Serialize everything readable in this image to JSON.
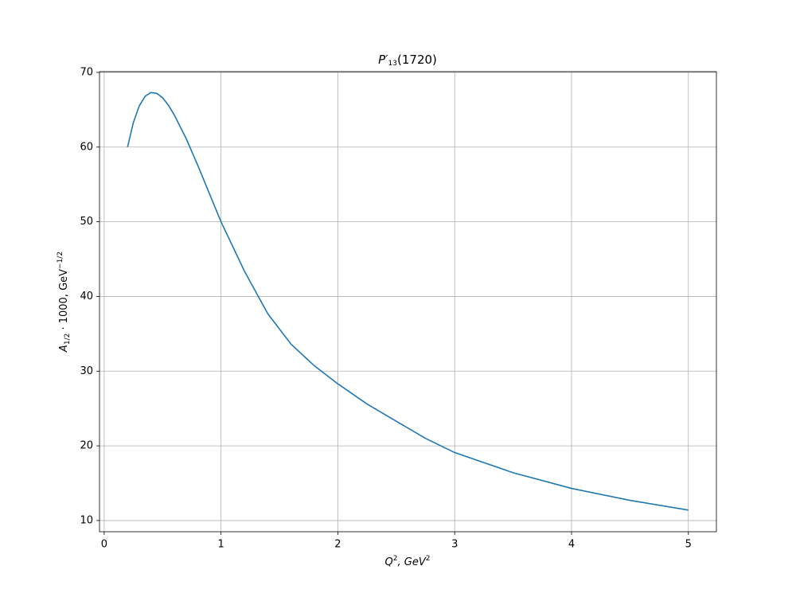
{
  "chart_data": {
    "type": "line",
    "title": [
      "P′",
      "13",
      "(1720)"
    ],
    "xlabel": [
      "Q",
      "2",
      ", GeV",
      "2"
    ],
    "ylabel": [
      "A",
      "1/2",
      " · 1000, GeV",
      "−1/2"
    ],
    "x": [
      0.2,
      0.25,
      0.3,
      0.35,
      0.4,
      0.45,
      0.5,
      0.55,
      0.6,
      0.7,
      0.8,
      0.9,
      1.0,
      1.2,
      1.4,
      1.6,
      1.8,
      2.0,
      2.25,
      2.5,
      2.75,
      3.0,
      3.5,
      4.0,
      4.5,
      5.0
    ],
    "series": [
      {
        "color": "#1f77b4",
        "values": [
          60.0,
          63.3,
          65.5,
          66.8,
          67.3,
          67.2,
          66.6,
          65.6,
          64.3,
          61.2,
          57.6,
          53.8,
          50.0,
          43.4,
          37.7,
          33.6,
          30.7,
          28.3,
          25.6,
          23.3,
          21.0,
          19.1,
          16.4,
          14.3,
          12.7,
          11.4
        ]
      }
    ],
    "xlim": [
      -0.04,
      5.24
    ],
    "ylim": [
      8.5,
      70.1
    ],
    "xticks": [
      0,
      1,
      2,
      3,
      4,
      5
    ],
    "yticks": [
      10,
      20,
      30,
      40,
      50,
      60,
      70
    ],
    "grid": true
  }
}
